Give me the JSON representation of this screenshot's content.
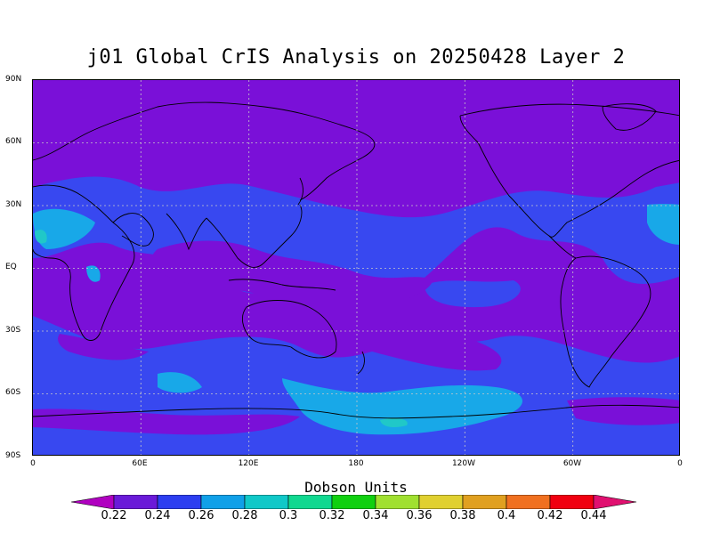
{
  "title": "j01 Global CrIS Analysis on 20250428 Layer 2",
  "lat_labels": [
    "90N",
    "60N",
    "30N",
    "EQ",
    "30S",
    "60S",
    "90S"
  ],
  "lon_labels": [
    "0",
    "60E",
    "120E",
    "180",
    "120W",
    "60W",
    "0"
  ],
  "colorbar": {
    "title": "Dobson Units",
    "labels": [
      "0.22",
      "0.24",
      "0.26",
      "0.28",
      "0.3",
      "0.32",
      "0.34",
      "0.36",
      "0.38",
      "0.4",
      "0.42",
      "0.44"
    ],
    "colors": [
      "#9a00c8",
      "#6a1ad8",
      "#2c3ef0",
      "#10a0e8",
      "#10c8c8",
      "#10d890",
      "#10d010",
      "#a0e030",
      "#e0d030",
      "#e0a020",
      "#f07020",
      "#f00010",
      "#e0107a"
    ],
    "min_color": "#b000c0",
    "max_color": "#e01070"
  },
  "fill_colors": {
    "purple": "#7a10d8",
    "blue": "#3848f0",
    "cyan": "#18a8e8",
    "teal": "#20c8c8"
  },
  "grid": true
}
